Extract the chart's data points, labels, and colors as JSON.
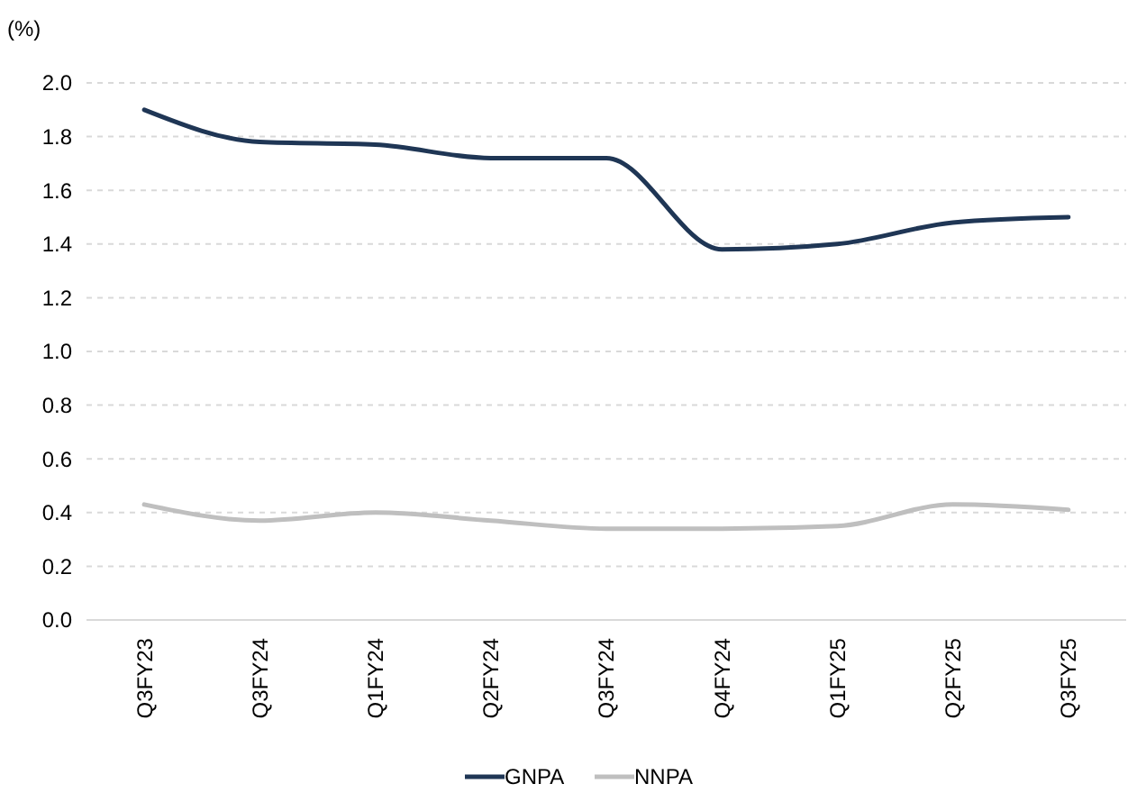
{
  "chart_data": {
    "type": "line",
    "ylabel": "(%)",
    "categories": [
      "Q3FY23",
      "Q3FY24",
      "Q1FY24",
      "Q2FY24",
      "Q3FY24",
      "Q4FY24",
      "Q1FY25",
      "Q2FY25",
      "Q3FY25"
    ],
    "series": [
      {
        "name": "GNPA",
        "color": "#1f3655",
        "values": [
          1.9,
          1.78,
          1.77,
          1.72,
          1.72,
          1.38,
          1.4,
          1.48,
          1.5
        ]
      },
      {
        "name": "NNPA",
        "color": "#bfbfbf",
        "values": [
          0.43,
          0.37,
          0.4,
          0.37,
          0.34,
          0.34,
          0.35,
          0.43,
          0.41
        ]
      }
    ],
    "ylim": [
      0,
      2
    ],
    "yticks": [
      {
        "value": 0,
        "label": "0.0"
      },
      {
        "value": 0.2,
        "label": "0.2"
      },
      {
        "value": 0.4,
        "label": "0.4"
      },
      {
        "value": 0.6,
        "label": "0.6"
      },
      {
        "value": 0.8,
        "label": "0.8"
      },
      {
        "value": 1,
        "label": "1.0"
      },
      {
        "value": 1.2,
        "label": "1.2"
      },
      {
        "value": 1.4,
        "label": "1.4"
      },
      {
        "value": 1.6,
        "label": "1.6"
      },
      {
        "value": 1.8,
        "label": "1.8"
      },
      {
        "value": 2,
        "label": "2.0"
      }
    ],
    "grid": "y",
    "legend": "bottom",
    "marker": "none",
    "line_style": "solid"
  }
}
